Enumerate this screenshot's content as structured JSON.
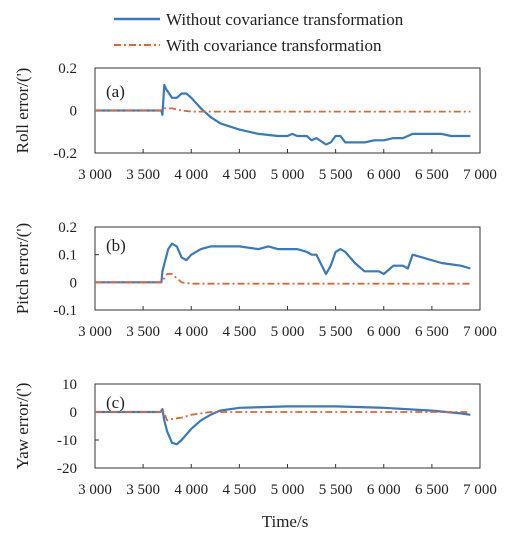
{
  "colors": {
    "without": "#3b79b8",
    "with": "#d9683a"
  },
  "legend": {
    "placement": "top-center",
    "items": [
      "Without covariance transformation",
      "With covariance transformation"
    ]
  },
  "xlabel": "Time/s",
  "chart_data": [
    {
      "type": "line",
      "panel_label": "(a)",
      "ylabel": "Roll error/(')",
      "xlim": [
        3000,
        7000
      ],
      "ylim": [
        -0.2,
        0.2
      ],
      "xticks": [
        "3 000",
        "3 500",
        "4 000",
        "4 500",
        "5 000",
        "5 500",
        "6 000",
        "6 500",
        "7 000"
      ],
      "yticks": [
        "-0.2",
        "0",
        "0.2"
      ],
      "series": [
        {
          "name": "Without covariance transformation",
          "style": "solid",
          "x": [
            3000,
            3500,
            3690,
            3700,
            3720,
            3740,
            3800,
            3850,
            3900,
            3950,
            4000,
            4100,
            4200,
            4300,
            4500,
            4700,
            4900,
            5000,
            5050,
            5100,
            5200,
            5250,
            5300,
            5400,
            5450,
            5500,
            5550,
            5600,
            5700,
            5800,
            5900,
            6000,
            6100,
            6200,
            6300,
            6400,
            6500,
            6600,
            6700,
            6800,
            6900
          ],
          "y": [
            0,
            0,
            0,
            -0.02,
            0.12,
            0.1,
            0.06,
            0.06,
            0.08,
            0.08,
            0.06,
            0.01,
            -0.03,
            -0.06,
            -0.09,
            -0.11,
            -0.12,
            -0.12,
            -0.11,
            -0.12,
            -0.12,
            -0.14,
            -0.13,
            -0.16,
            -0.15,
            -0.12,
            -0.12,
            -0.15,
            -0.15,
            -0.15,
            -0.14,
            -0.14,
            -0.13,
            -0.13,
            -0.11,
            -0.11,
            -0.11,
            -0.11,
            -0.12,
            -0.12,
            -0.12
          ]
        },
        {
          "name": "With covariance transformation",
          "style": "dash-dot",
          "x": [
            3000,
            3500,
            3690,
            3700,
            3720,
            3800,
            3900,
            4000,
            4500,
            5000,
            5500,
            6000,
            6500,
            6900
          ],
          "y": [
            0,
            0,
            0,
            0,
            0.01,
            0.01,
            0.0,
            -0.005,
            -0.005,
            -0.005,
            -0.005,
            -0.005,
            -0.005,
            -0.005
          ]
        }
      ]
    },
    {
      "type": "line",
      "panel_label": "(b)",
      "ylabel": "Pitch error/(')",
      "xlim": [
        3000,
        7000
      ],
      "ylim": [
        -0.1,
        0.2
      ],
      "xticks": [
        "3 000",
        "3 500",
        "4 000",
        "4 500",
        "5 000",
        "5 500",
        "6 000",
        "6 500",
        "7 000"
      ],
      "yticks": [
        "-0.1",
        "0",
        "0.1",
        "0.2"
      ],
      "series": [
        {
          "name": "Without covariance transformation",
          "style": "solid",
          "x": [
            3000,
            3500,
            3690,
            3700,
            3730,
            3760,
            3800,
            3850,
            3900,
            3950,
            4000,
            4100,
            4200,
            4500,
            4700,
            4800,
            4900,
            5000,
            5050,
            5100,
            5200,
            5250,
            5300,
            5400,
            5450,
            5500,
            5550,
            5600,
            5700,
            5800,
            5900,
            5950,
            6000,
            6100,
            6200,
            6250,
            6300,
            6400,
            6600,
            6800,
            6900
          ],
          "y": [
            0,
            0,
            0,
            0.04,
            0.08,
            0.12,
            0.14,
            0.13,
            0.09,
            0.08,
            0.1,
            0.12,
            0.13,
            0.13,
            0.12,
            0.13,
            0.12,
            0.12,
            0.12,
            0.12,
            0.11,
            0.1,
            0.1,
            0.03,
            0.06,
            0.11,
            0.12,
            0.11,
            0.07,
            0.04,
            0.04,
            0.04,
            0.03,
            0.06,
            0.06,
            0.05,
            0.1,
            0.09,
            0.07,
            0.06,
            0.05
          ]
        },
        {
          "name": "With covariance transformation",
          "style": "dash-dot",
          "x": [
            3000,
            3500,
            3690,
            3710,
            3750,
            3800,
            3850,
            3900,
            4000,
            4500,
            5000,
            5500,
            6000,
            6500,
            6900
          ],
          "y": [
            0,
            0,
            0,
            0.01,
            0.03,
            0.03,
            0.015,
            0.0,
            -0.005,
            -0.005,
            -0.005,
            -0.005,
            -0.005,
            -0.005,
            -0.005
          ]
        }
      ]
    },
    {
      "type": "line",
      "panel_label": "(c)",
      "ylabel": "Yaw error/(')",
      "xlim": [
        3000,
        7000
      ],
      "ylim": [
        -20,
        10
      ],
      "xticks": [
        "3 000",
        "3 500",
        "4 000",
        "4 500",
        "5 000",
        "5 500",
        "6 000",
        "6 500",
        "7 000"
      ],
      "yticks": [
        "-20",
        "-10",
        "0",
        "10"
      ],
      "series": [
        {
          "name": "Without covariance transformation",
          "style": "solid",
          "x": [
            3000,
            3500,
            3680,
            3700,
            3720,
            3750,
            3800,
            3850,
            3900,
            4000,
            4100,
            4200,
            4300,
            4500,
            5000,
            5500,
            6000,
            6500,
            6800,
            6900
          ],
          "y": [
            0,
            0,
            0,
            1,
            -3,
            -7,
            -11,
            -11.5,
            -10,
            -6,
            -3,
            -1,
            0.5,
            1.5,
            2,
            2,
            1.5,
            0.5,
            -0.5,
            -1
          ]
        },
        {
          "name": "With covariance transformation",
          "style": "dash-dot",
          "x": [
            3000,
            3500,
            3680,
            3700,
            3750,
            3800,
            3900,
            4000,
            4200,
            4500,
            5000,
            5500,
            6000,
            6500,
            6900
          ],
          "y": [
            0,
            0,
            0,
            1,
            -3,
            -2.5,
            -2,
            -1,
            0,
            0,
            0,
            0,
            0,
            0,
            0
          ]
        }
      ]
    }
  ]
}
